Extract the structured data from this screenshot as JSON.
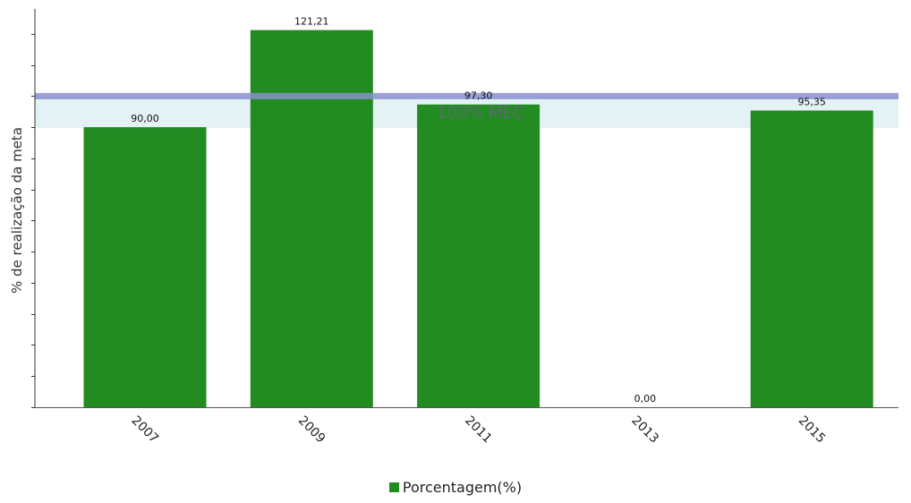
{
  "chart_data": {
    "type": "bar",
    "ylabel": "% de realização da meta",
    "xlabel": "",
    "categories": [
      "2007",
      "2009",
      "2011",
      "2013",
      "2015"
    ],
    "series": [
      {
        "name": "Porcentagem(%)",
        "values": [
          90.0,
          121.21,
          97.3,
          0.0,
          95.35
        ],
        "value_labels": [
          "90,00",
          "121,21",
          "97,30",
          "0,00",
          "95,35"
        ],
        "color": "#228b22"
      }
    ],
    "ylim": [
      0,
      128
    ],
    "y_tick_step": 10,
    "y_tick_labels_shown": false,
    "reference_band": {
      "label": "100% MEC",
      "from": 90,
      "to": 100,
      "fill_color": "#e4f2f6",
      "line_value": 100,
      "line_color": "#8a8fd0"
    },
    "x_tick_rotation": "45deg",
    "legend_position": "bottom-center",
    "grid": false
  }
}
